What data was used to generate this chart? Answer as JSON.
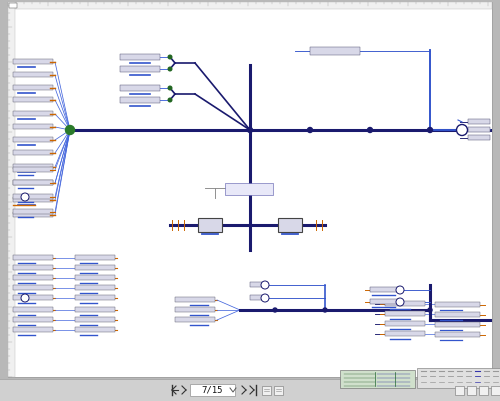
{
  "bg_outer": "#b8b8b8",
  "bg_page": "#ffffff",
  "bg_toolbar": "#d0d0d0",
  "dark": "#1a1a6e",
  "blue": "#3355cc",
  "blue2": "#4466dd",
  "red": "#cc2222",
  "orange": "#cc6600",
  "green": "#226622",
  "gray": "#888888",
  "lgray": "#cccccc",
  "dgray": "#444444",
  "nav_text": "7/15",
  "ruler_bg": "#f0f0f0",
  "ruler_tick": "#999999",
  "thumb_bg": "#d8e8d0",
  "strip_bg": "#e0e0e0"
}
